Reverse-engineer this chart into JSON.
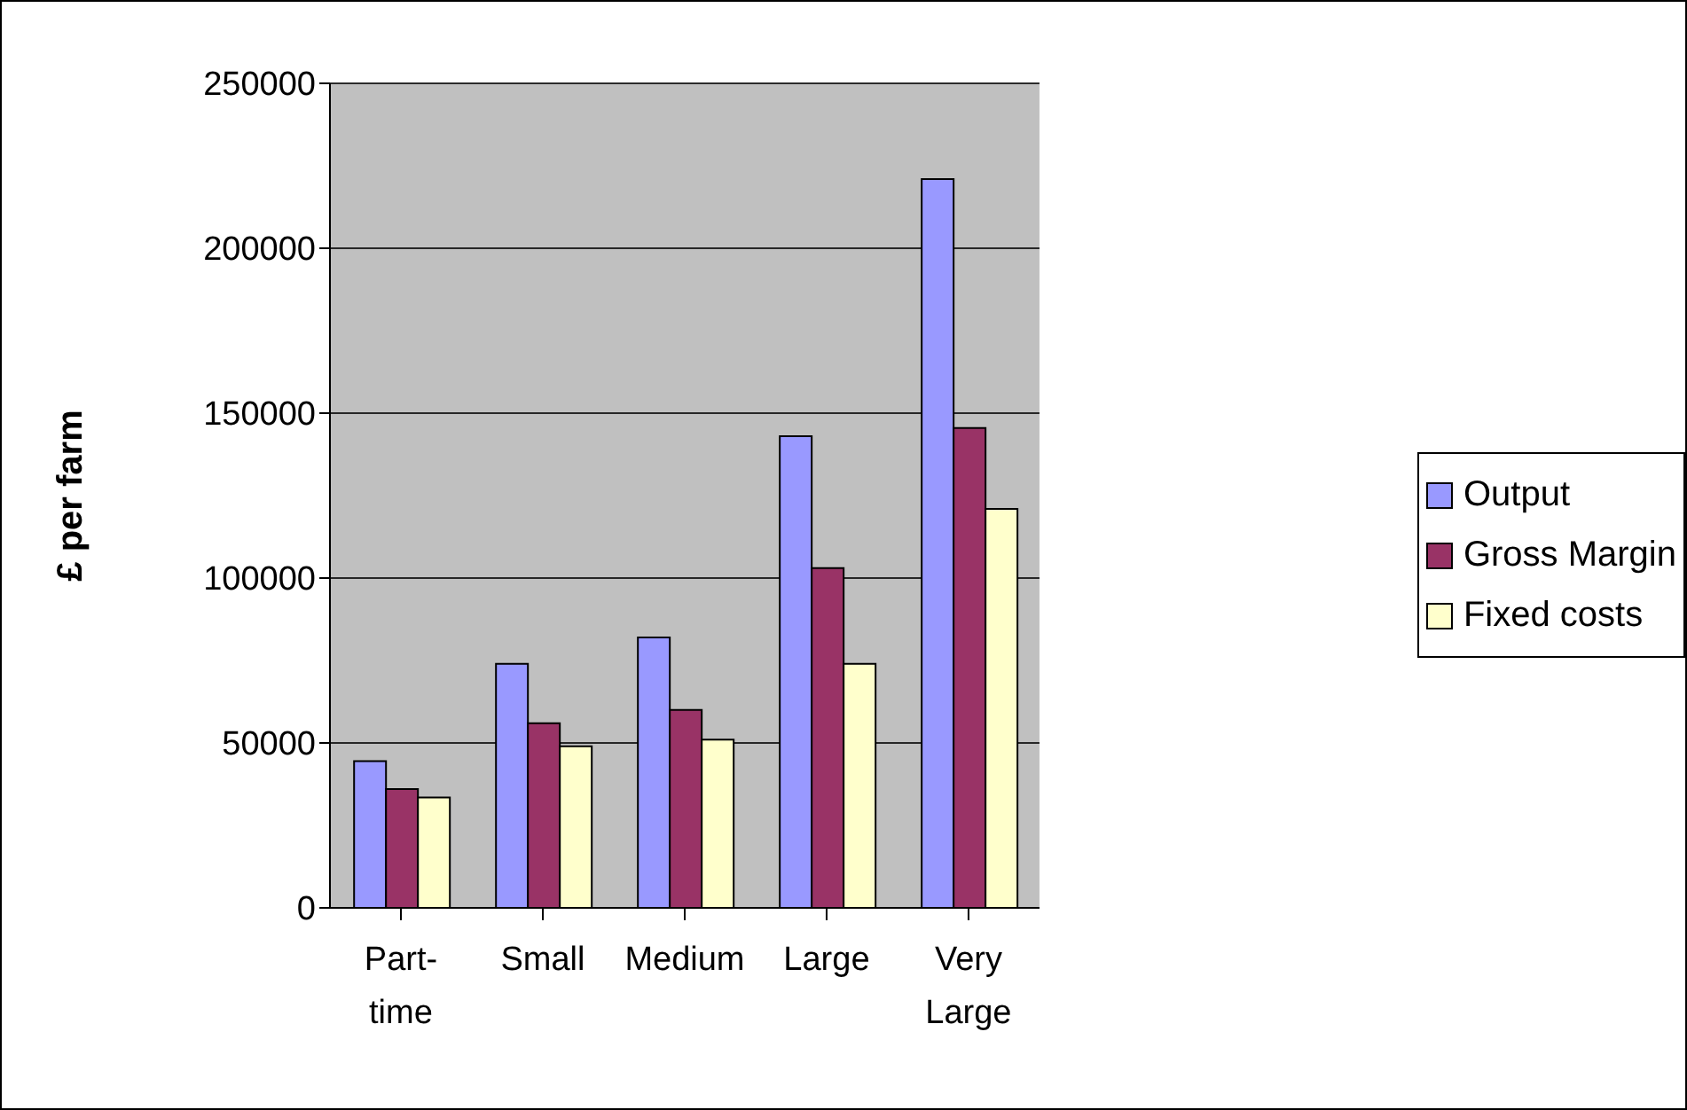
{
  "chart_data": {
    "type": "bar",
    "ylabel": "£ per farm",
    "categories": [
      "Part-time",
      "Small",
      "Medium",
      "Large",
      "Very Large"
    ],
    "series": [
      {
        "name": "Output",
        "color": "#9999ff",
        "values": [
          44500,
          74000,
          82000,
          143000,
          221000
        ]
      },
      {
        "name": "Gross Margin",
        "color": "#993366",
        "values": [
          36000,
          56000,
          60000,
          103000,
          145500
        ]
      },
      {
        "name": "Fixed costs",
        "color": "#ffffcc",
        "values": [
          33500,
          49000,
          51000,
          74000,
          121000
        ]
      }
    ],
    "ylim": [
      0,
      250000
    ],
    "yticks": [
      0,
      50000,
      100000,
      150000,
      200000,
      250000
    ],
    "grid": "y",
    "legend": "right"
  }
}
